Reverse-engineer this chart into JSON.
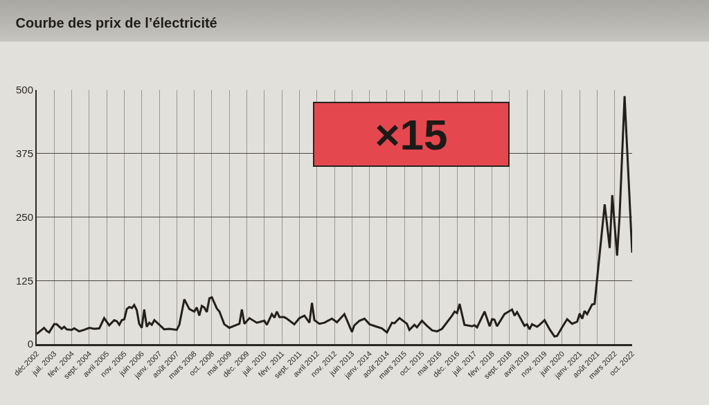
{
  "chart_data": {
    "type": "line",
    "title": "Courbe des prix de l’électricité",
    "annotations": [
      "×15"
    ],
    "color": "#231f1c",
    "grid": true,
    "x": [
      "2002-12",
      "2003-03",
      "2003-04",
      "2003-05",
      "2003-07",
      "2003-08",
      "2003-10",
      "2003-11",
      "2003-12",
      "2004-02",
      "2004-03",
      "2004-05",
      "2004-07",
      "2004-09",
      "2004-11",
      "2005-01",
      "2005-03",
      "2005-05",
      "2005-07",
      "2005-08",
      "2005-09",
      "2005-10",
      "2005-11",
      "2005-12",
      "2006-01",
      "2006-02",
      "2006-03",
      "2006-04",
      "2006-05",
      "2006-06",
      "2006-07",
      "2006-08",
      "2006-09",
      "2006-10",
      "2006-11",
      "2007-01",
      "2007-03",
      "2007-05",
      "2007-08",
      "2007-09",
      "2007-11",
      "2008-01",
      "2008-03",
      "2008-04",
      "2008-05",
      "2008-06",
      "2008-07",
      "2008-08",
      "2008-09",
      "2008-10",
      "2008-12",
      "2009-01",
      "2009-03",
      "2009-05",
      "2009-08",
      "2009-09",
      "2009-10",
      "2009-11",
      "2010-01",
      "2010-04",
      "2010-07",
      "2010-08",
      "2010-10",
      "2010-11",
      "2010-12",
      "2011-01",
      "2011-03",
      "2011-04",
      "2011-07",
      "2011-09",
      "2011-11",
      "2012-01",
      "2012-02",
      "2012-03",
      "2012-05",
      "2012-07",
      "2012-10",
      "2012-12",
      "2013-03",
      "2013-06",
      "2013-07",
      "2013-09",
      "2013-11",
      "2014-01",
      "2014-04",
      "2014-06",
      "2014-08",
      "2014-10",
      "2014-11",
      "2015-01",
      "2015-04",
      "2015-05",
      "2015-07",
      "2015-08",
      "2015-10",
      "2015-12",
      "2016-02",
      "2016-04",
      "2016-06",
      "2016-10",
      "2016-11",
      "2016-12",
      "2017-01",
      "2017-03",
      "2017-06",
      "2017-07",
      "2017-08",
      "2017-11",
      "2018-01",
      "2018-02",
      "2018-03",
      "2018-04",
      "2018-07",
      "2018-10",
      "2018-11",
      "2018-12",
      "2019-03",
      "2019-04",
      "2019-05",
      "2019-06",
      "2019-08",
      "2019-09",
      "2019-11",
      "2020-01",
      "2020-03",
      "2020-04",
      "2020-06",
      "2020-08",
      "2020-10",
      "2020-12",
      "2021-01",
      "2021-02",
      "2021-03",
      "2021-04",
      "2021-06",
      "2021-07",
      "2021-11",
      "2022-01",
      "2022-02",
      "2022-04",
      "2022-05",
      "2022-07",
      "2022-10"
    ],
    "values": [
      20,
      32,
      26,
      23,
      39,
      39,
      30,
      34,
      29,
      28,
      31,
      25,
      28,
      32,
      30,
      31,
      51,
      37,
      47,
      45,
      38,
      47,
      49,
      69,
      73,
      71,
      77,
      67,
      40,
      32,
      68,
      34,
      42,
      38,
      47,
      38,
      29,
      30,
      28,
      38,
      88,
      69,
      64,
      72,
      56,
      75,
      72,
      63,
      90,
      92,
      70,
      64,
      39,
      32,
      38,
      40,
      68,
      40,
      51,
      42,
      46,
      38,
      59,
      52,
      64,
      53,
      53,
      50,
      39,
      51,
      56,
      42,
      81,
      47,
      40,
      42,
      50,
      43,
      59,
      24,
      37,
      46,
      50,
      39,
      34,
      31,
      23,
      42,
      41,
      51,
      40,
      28,
      38,
      33,
      46,
      36,
      27,
      25,
      30,
      56,
      64,
      61,
      79,
      38,
      35,
      37,
      33,
      64,
      35,
      49,
      48,
      35,
      59,
      68,
      56,
      63,
      36,
      39,
      29,
      39,
      34,
      38,
      47,
      29,
      15,
      16,
      33,
      49,
      40,
      44,
      60,
      50,
      65,
      59,
      78,
      79,
      275,
      189,
      293,
      174,
      251,
      488,
      180
    ],
    "xlim": [
      "2002-12",
      "2022-10"
    ],
    "xticks": [
      {
        "value": "2002-12",
        "label": "déc.2002"
      },
      {
        "value": "2003-07",
        "label": "juil. 2003"
      },
      {
        "value": "2004-02",
        "label": "févr. 2004"
      },
      {
        "value": "2004-09",
        "label": "sept. 2004"
      },
      {
        "value": "2005-04",
        "label": "avril 2005"
      },
      {
        "value": "2005-11",
        "label": "nov. 2005"
      },
      {
        "value": "2006-06",
        "label": "juin 2006"
      },
      {
        "value": "2007-01",
        "label": "janv. 2007"
      },
      {
        "value": "2007-08",
        "label": "août 2007"
      },
      {
        "value": "2008-03",
        "label": "mars 2008"
      },
      {
        "value": "2008-10",
        "label": "oct. 2008"
      },
      {
        "value": "2009-05",
        "label": "mai 2009"
      },
      {
        "value": "2009-12",
        "label": "déc. 2009"
      },
      {
        "value": "2010-07",
        "label": "juil. 2010"
      },
      {
        "value": "2011-02",
        "label": "févr. 2011"
      },
      {
        "value": "2011-09",
        "label": "sept. 2011"
      },
      {
        "value": "2012-04",
        "label": "avril 2012"
      },
      {
        "value": "2012-11",
        "label": "nov. 2012"
      },
      {
        "value": "2013-06",
        "label": "juin 2013"
      },
      {
        "value": "2014-01",
        "label": "janv. 2014"
      },
      {
        "value": "2014-08",
        "label": "août 2014"
      },
      {
        "value": "2015-03",
        "label": "mars 2015"
      },
      {
        "value": "2015-10",
        "label": "oct. 2015"
      },
      {
        "value": "2016-05",
        "label": "mai 2016"
      },
      {
        "value": "2016-12",
        "label": "déc. 2016"
      },
      {
        "value": "2017-07",
        "label": "juil. 2017"
      },
      {
        "value": "2018-02",
        "label": "févr. 2018"
      },
      {
        "value": "2018-09",
        "label": "sept. 2018"
      },
      {
        "value": "2019-04",
        "label": "avril 2019"
      },
      {
        "value": "2019-11",
        "label": "nov. 2019"
      },
      {
        "value": "2020-06",
        "label": "juin 2020"
      },
      {
        "value": "2021-01",
        "label": "janv. 2021"
      },
      {
        "value": "2021-08",
        "label": "août 2021"
      },
      {
        "value": "2022-03",
        "label": "mars 2022"
      },
      {
        "value": "2022-10",
        "label": "oct. 2022"
      }
    ],
    "ylim": [
      0,
      500
    ],
    "yticks": [
      0,
      125,
      250,
      375,
      500
    ]
  }
}
